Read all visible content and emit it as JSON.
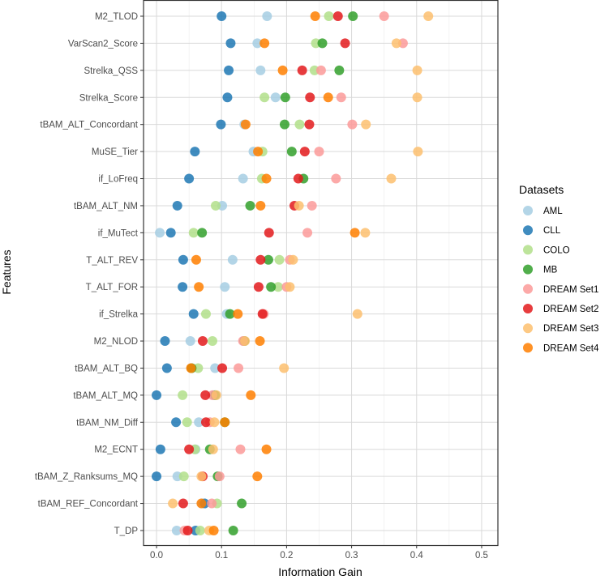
{
  "chart_data": {
    "type": "scatter",
    "title": "",
    "xlabel": "Information Gain",
    "ylabel": "Features",
    "xlim": [
      -0.02,
      0.525
    ],
    "xticks": [
      0.0,
      0.1,
      0.2,
      0.3,
      0.4,
      0.5
    ],
    "xtick_labels": [
      "0.0",
      "0.1",
      "0.2",
      "0.3",
      "0.4",
      "0.5"
    ],
    "grid": true,
    "legend": {
      "title": "Datasets",
      "placement": "right"
    },
    "features": [
      "M2_TLOD",
      "VarScan2_Score",
      "Strelka_QSS",
      "Strelka_Score",
      "tBAM_ALT_Concordant",
      "MuSE_Tier",
      "if_LoFreq",
      "tBAM_ALT_NM",
      "if_MuTect",
      "T_ALT_REV",
      "T_ALT_FOR",
      "if_Strelka",
      "M2_NLOD",
      "tBAM_ALT_BQ",
      "tBAM_ALT_MQ",
      "tBAM_NM_Diff",
      "M2_ECNT",
      "tBAM_Z_Ranksums_MQ",
      "tBAM_REF_Concordant",
      "T_DP"
    ],
    "series": [
      {
        "name": "AML",
        "color": "#a6cee3",
        "values": [
          0.17,
          0.155,
          0.16,
          0.183,
          0.135,
          0.149,
          0.133,
          0.101,
          0.005,
          0.117,
          0.105,
          0.108,
          0.052,
          0.09,
          0.088,
          0.065,
          0.06,
          0.032,
          0.07,
          0.031
        ]
      },
      {
        "name": "CLL",
        "color": "#1f78b4",
        "values": [
          0.1,
          0.114,
          0.111,
          0.109,
          0.099,
          0.059,
          0.05,
          0.032,
          0.022,
          0.041,
          0.04,
          0.057,
          0.013,
          0.016,
          0.0,
          0.03,
          0.006,
          0.0,
          0.074,
          0.06
        ]
      },
      {
        "name": "COLO",
        "color": "#b2df8a",
        "values": [
          0.265,
          0.245,
          0.243,
          0.166,
          0.22,
          0.163,
          0.162,
          0.091,
          0.057,
          0.189,
          0.187,
          0.076,
          0.086,
          0.064,
          0.04,
          0.047,
          0.059,
          0.042,
          0.093,
          0.067
        ]
      },
      {
        "name": "MB",
        "color": "#33a02c",
        "values": [
          0.302,
          0.255,
          0.281,
          0.198,
          0.197,
          0.208,
          0.226,
          0.144,
          0.07,
          0.172,
          0.176,
          0.113,
          0.135,
          0.054,
          0.09,
          0.105,
          0.082,
          0.094,
          0.131,
          0.118
        ]
      },
      {
        "name": "DREAM Set1",
        "color": "#fb9a99",
        "values": [
          0.35,
          0.379,
          0.253,
          0.284,
          0.301,
          0.25,
          0.276,
          0.239,
          0.232,
          0.205,
          0.2,
          0.165,
          0.133,
          0.126,
          0.086,
          0.082,
          0.129,
          0.097,
          0.085,
          0.043
        ]
      },
      {
        "name": "DREAM Set2",
        "color": "#e31a1c",
        "values": [
          0.279,
          0.29,
          0.224,
          0.236,
          0.235,
          0.228,
          0.218,
          0.212,
          0.173,
          0.16,
          0.157,
          0.163,
          0.071,
          0.101,
          0.075,
          0.076,
          0.05,
          0.071,
          0.041,
          0.048
        ]
      },
      {
        "name": "DREAM Set3",
        "color": "#fdbf6f",
        "values": [
          0.418,
          0.369,
          0.401,
          0.401,
          0.322,
          0.402,
          0.361,
          0.219,
          0.321,
          0.21,
          0.205,
          0.309,
          0.136,
          0.196,
          0.092,
          0.089,
          0.087,
          0.069,
          0.025,
          0.081
        ]
      },
      {
        "name": "DREAM Set4",
        "color": "#ff7f00",
        "values": [
          0.244,
          0.166,
          0.194,
          0.264,
          0.137,
          0.156,
          0.169,
          0.16,
          0.305,
          0.061,
          0.065,
          0.125,
          0.159,
          0.053,
          0.145,
          0.105,
          0.169,
          0.155,
          0.069,
          0.088
        ]
      }
    ]
  }
}
